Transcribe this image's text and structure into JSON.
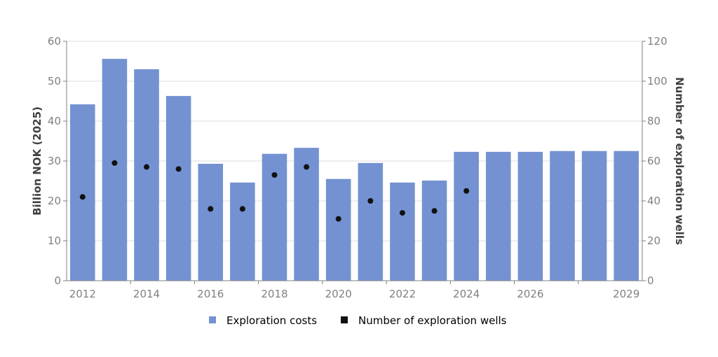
{
  "chart_data": {
    "type": "bar",
    "categories": [
      "2012",
      "2013",
      "2014",
      "2015",
      "2016",
      "2017",
      "2018",
      "2019",
      "2020",
      "2021",
      "2022",
      "2023",
      "2024",
      "2025",
      "2026",
      "2027",
      "2028",
      "2029"
    ],
    "x_tick_labels": [
      {
        "category": "2012",
        "label": "2012"
      },
      {
        "category": "2014",
        "label": "2014"
      },
      {
        "category": "2016",
        "label": "2016"
      },
      {
        "category": "2018",
        "label": "2018"
      },
      {
        "category": "2020",
        "label": "2020"
      },
      {
        "category": "2022",
        "label": "2022"
      },
      {
        "category": "2024",
        "label": "2024"
      },
      {
        "category": "2026",
        "label": "2026"
      },
      {
        "category": "2029",
        "label": "2029"
      }
    ],
    "series": [
      {
        "name": "Exploration costs",
        "type": "bar",
        "axis": "left",
        "color": "#7492d2",
        "values": [
          44.2,
          55.6,
          53.0,
          46.3,
          29.3,
          24.6,
          31.8,
          33.3,
          25.5,
          29.5,
          24.6,
          25.1,
          32.3,
          32.3,
          32.3,
          32.5,
          32.5,
          32.5
        ]
      },
      {
        "name": "Number of exploration wells",
        "type": "scatter",
        "axis": "right",
        "color": "#111111",
        "values": [
          42,
          59,
          57,
          56,
          36,
          36,
          53,
          57,
          31,
          40,
          34,
          35,
          45,
          null,
          null,
          null,
          null,
          null
        ]
      }
    ],
    "ylabel": "Billion NOK (2025)",
    "y2label": "Number of exploration wells",
    "ylim": [
      0,
      60
    ],
    "y2lim": [
      0,
      120
    ],
    "yticks": [
      0,
      10,
      20,
      30,
      40,
      50,
      60
    ],
    "y2ticks": [
      0,
      20,
      40,
      60,
      80,
      100,
      120
    ],
    "grid": true,
    "legend_position": "bottom"
  }
}
